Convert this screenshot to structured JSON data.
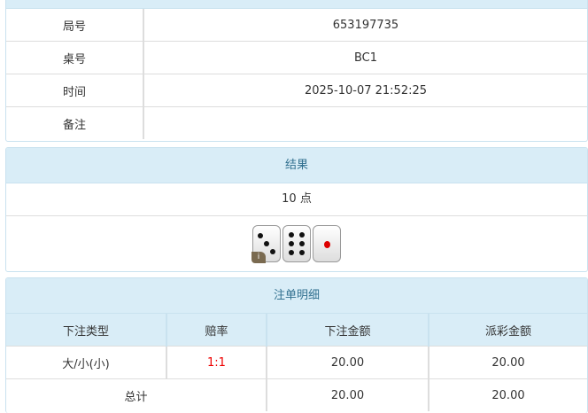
{
  "info": {
    "rows": [
      {
        "label": "局号",
        "value": "653197735"
      },
      {
        "label": "桌号",
        "value": "BC1"
      },
      {
        "label": "时间",
        "value": "2025-10-07 21:52:25"
      },
      {
        "label": "备注",
        "value": ""
      }
    ]
  },
  "result": {
    "title": "结果",
    "points": "10 点",
    "dice": [
      3,
      6,
      1
    ],
    "info_badge": "i"
  },
  "bets": {
    "title": "注单明细",
    "headers": [
      "下注类型",
      "赔率",
      "下注金额",
      "派彩金额"
    ],
    "rows": [
      {
        "type": "大/小(小)",
        "odds": "1:1",
        "amount": "20.00",
        "payout": "20.00"
      }
    ],
    "total": {
      "label": "总计",
      "amount": "20.00",
      "payout": "20.00"
    }
  },
  "colors": {
    "header_bg": "#d9edf7",
    "header_text": "#31708f",
    "odds": "#ee0000"
  }
}
